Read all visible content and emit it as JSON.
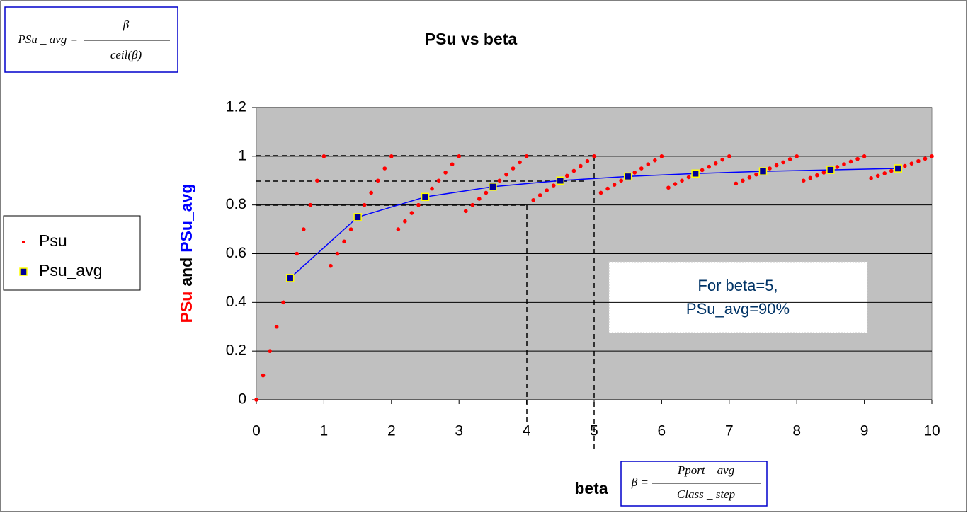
{
  "chart_data": {
    "type": "line",
    "title": "PSu vs beta",
    "y_label_parts": [
      {
        "text": "PSu",
        "color": "#ff0000"
      },
      {
        "text": "and",
        "color": "#000000"
      },
      {
        "text": "PSu_avg",
        "color": "#0000ff"
      }
    ],
    "x_label": "beta",
    "formula_top": {
      "lhs": "PSu _ avg =",
      "num": "β",
      "den": "ceil(β)"
    },
    "formula_bottom": {
      "lhs": "β =",
      "num": "Pport _ avg",
      "den": "Class _ step"
    },
    "annotation": [
      "For beta=5,",
      "PSu_avg=90%"
    ],
    "xlim": [
      0,
      10
    ],
    "xticks": [
      0,
      1,
      2,
      3,
      4,
      5,
      6,
      7,
      8,
      9,
      10
    ],
    "ylim": [
      0,
      1.2
    ],
    "yticks": [
      0,
      0.2,
      0.4,
      0.6,
      0.8,
      1,
      1.2
    ],
    "grid": true,
    "legend": "left",
    "series": [
      {
        "name": "Psu",
        "color": "#ff0000",
        "style": "dots",
        "x": [
          0,
          0.1,
          0.2,
          0.3,
          0.4,
          0.5,
          0.6,
          0.7,
          0.8,
          0.9,
          1,
          1.1,
          1.2,
          1.3,
          1.4,
          1.5,
          1.6,
          1.7,
          1.8,
          1.9,
          2,
          2.1,
          2.2,
          2.3,
          2.4,
          2.5,
          2.6,
          2.7,
          2.8,
          2.9,
          3,
          3.1,
          3.2,
          3.3,
          3.4,
          3.5,
          3.6,
          3.7,
          3.8,
          3.9,
          4,
          4.1,
          4.2,
          4.3,
          4.4,
          4.5,
          4.6,
          4.7,
          4.8,
          4.9,
          5,
          5.1,
          5.2,
          5.3,
          5.4,
          5.5,
          5.6,
          5.7,
          5.8,
          5.9,
          6,
          6.1,
          6.2,
          6.3,
          6.4,
          6.5,
          6.6,
          6.7,
          6.8,
          6.9,
          7,
          7.1,
          7.2,
          7.3,
          7.4,
          7.5,
          7.6,
          7.7,
          7.8,
          7.9,
          8,
          8.1,
          8.2,
          8.3,
          8.4,
          8.5,
          8.6,
          8.7,
          8.8,
          8.9,
          9,
          9.1,
          9.2,
          9.3,
          9.4,
          9.5,
          9.6,
          9.7,
          9.8,
          9.9,
          10
        ],
        "values": [
          0,
          0.1,
          0.2,
          0.3,
          0.4,
          0.5,
          0.6,
          0.7,
          0.8,
          0.9,
          1,
          0.55,
          0.6,
          0.65,
          0.7,
          0.75,
          0.8,
          0.85,
          0.9,
          0.95,
          1,
          0.7,
          0.733,
          0.767,
          0.8,
          0.833,
          0.867,
          0.9,
          0.933,
          0.967,
          1,
          0.775,
          0.8,
          0.825,
          0.85,
          0.875,
          0.9,
          0.925,
          0.95,
          0.975,
          1,
          0.82,
          0.84,
          0.86,
          0.88,
          0.9,
          0.92,
          0.94,
          0.96,
          0.98,
          1,
          0.85,
          0.867,
          0.883,
          0.9,
          0.917,
          0.933,
          0.95,
          0.967,
          0.983,
          1,
          0.871,
          0.886,
          0.9,
          0.914,
          0.929,
          0.943,
          0.957,
          0.971,
          0.986,
          1,
          0.888,
          0.9,
          0.913,
          0.925,
          0.938,
          0.95,
          0.963,
          0.975,
          0.988,
          1,
          0.9,
          0.911,
          0.922,
          0.933,
          0.944,
          0.956,
          0.967,
          0.978,
          0.989,
          1,
          0.91,
          0.92,
          0.93,
          0.94,
          0.95,
          0.96,
          0.97,
          0.98,
          0.99,
          1
        ]
      },
      {
        "name": "Psu_avg",
        "color": "#0000ff",
        "marker_color": "#000099",
        "marker_edge": "#ffff00",
        "style": "line",
        "x": [
          0.5,
          1.5,
          2.5,
          3.5,
          4.5,
          5.5,
          6.5,
          7.5,
          8.5,
          9.5
        ],
        "values": [
          0.5,
          0.75,
          0.833,
          0.875,
          0.9,
          0.917,
          0.929,
          0.938,
          0.944,
          0.95
        ]
      }
    ]
  }
}
